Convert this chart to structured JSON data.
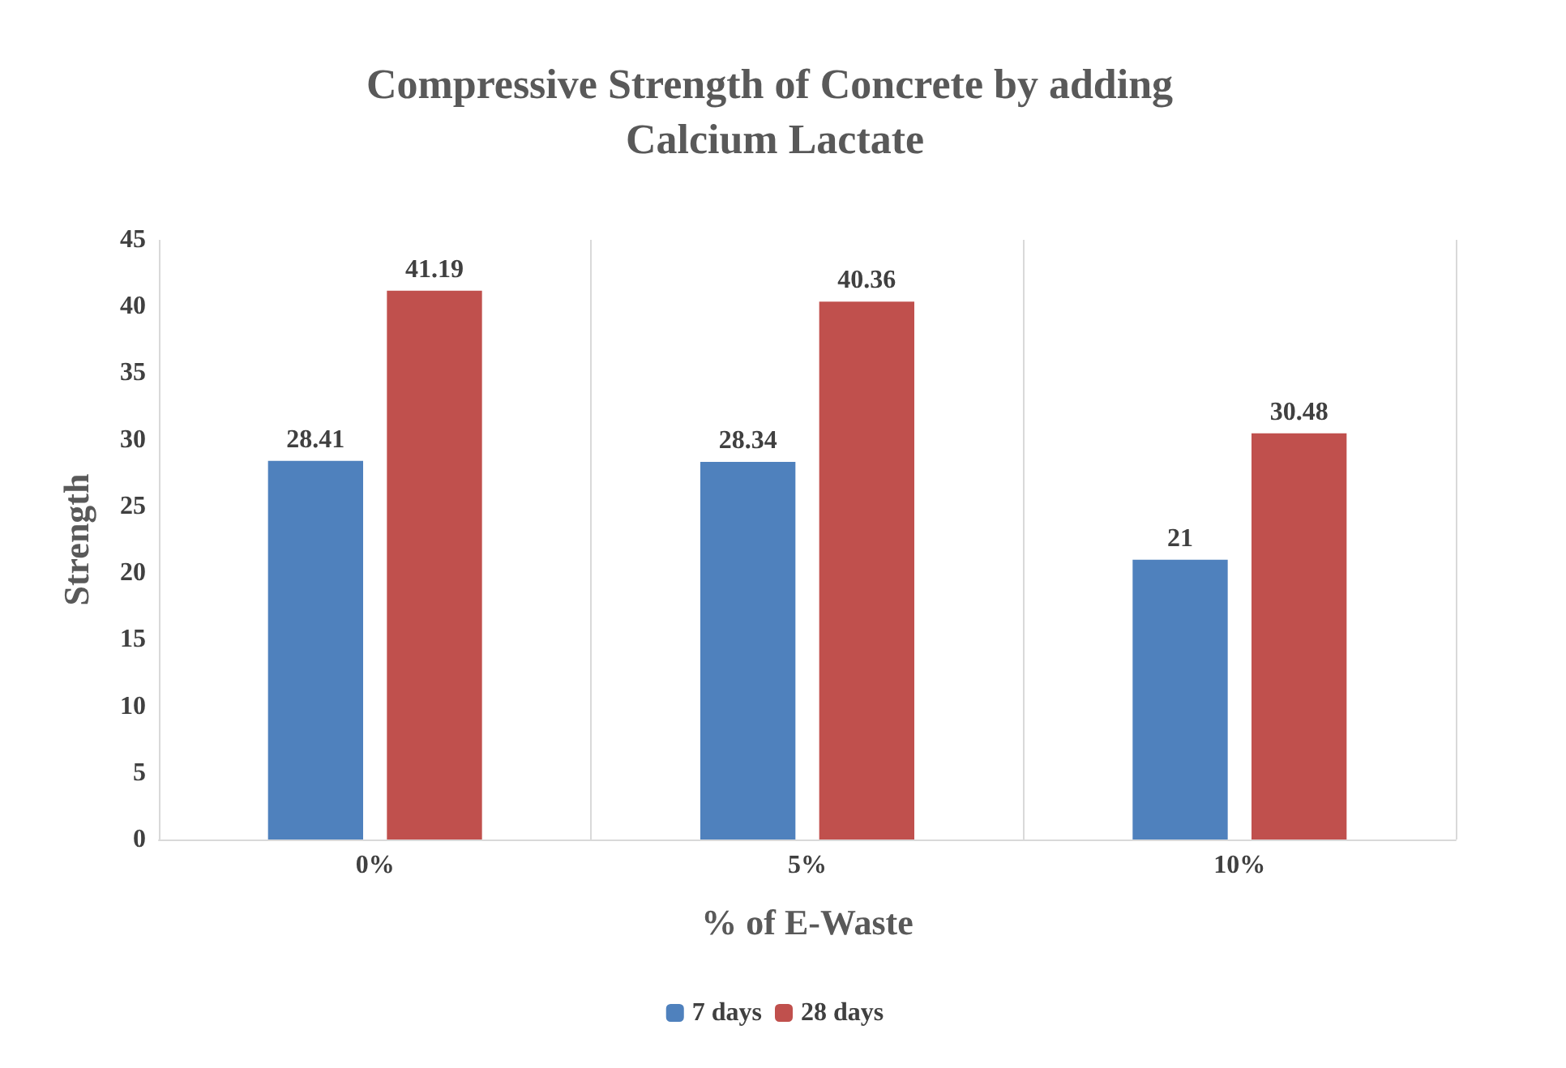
{
  "chart_data": {
    "type": "bar",
    "title": "Compressive Strength of Concrete by adding Calcium Lactate",
    "xlabel": "% of E-Waste",
    "ylabel": "Strength",
    "categories": [
      "0%",
      "5%",
      "10%"
    ],
    "series": [
      {
        "name": "7 days",
        "color": "#4f81bd",
        "values": [
          28.41,
          28.34,
          21
        ]
      },
      {
        "name": "28 days",
        "color": "#c0504d",
        "values": [
          41.19,
          40.36,
          30.48
        ]
      }
    ],
    "ylim": [
      0,
      45
    ],
    "yticks": [
      0,
      5,
      10,
      15,
      20,
      25,
      30,
      35,
      40,
      45
    ],
    "grid": "x",
    "legend": "bottom",
    "data_labels": true
  }
}
